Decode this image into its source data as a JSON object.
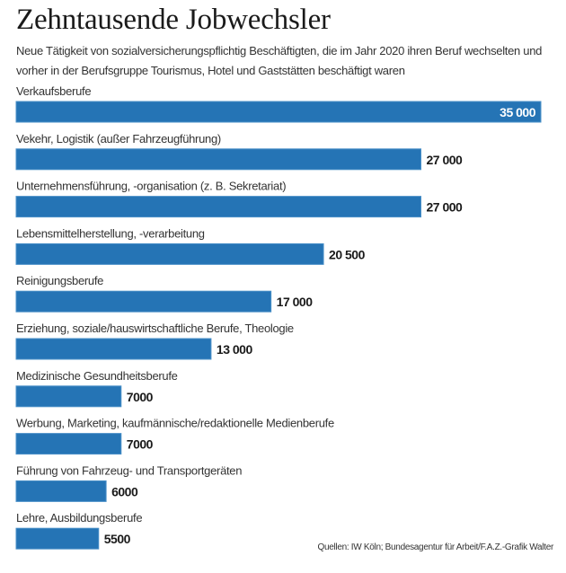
{
  "header": {
    "title": "Zehntausende Jobwechsler",
    "subtitle": "Neue Tätigkeit von sozialversicherungspflichtig Beschäftigten, die im Jahr 2020 ihren Beruf wechselten und vorher in der Berufsgruppe Tourismus, Hotel und Gaststätten beschäftigt waren"
  },
  "footer": {
    "source": "Quellen: IW Köln; Bundesagentur für Arbeit/F.A.Z.-Grafik Walter"
  },
  "colors": {
    "bar": "#2574b5",
    "bar_border": "#4a90c8"
  },
  "chart_data": {
    "type": "bar",
    "orientation": "horizontal",
    "title": "Zehntausende Jobwechsler",
    "xlabel": "",
    "ylabel": "",
    "xlim": [
      0,
      35000
    ],
    "grid": false,
    "categories": [
      "Verkaufsberufe",
      "Vekehr, Logistik (außer Fahrzeugführung)",
      "Unternehmensführung, -organisation (z. B. Sekretariat)",
      "Lebensmittelherstellung, -verarbeitung",
      "Reinigungsberufe",
      "Erziehung, soziale/hauswirtschaftliche Berufe, Theologie",
      "Medizinische Gesundheitsberufe",
      "Werbung, Marketing, kaufmännische/redaktionelle Medienberufe",
      "Führung von Fahrzeug- und Transportgeräten",
      "Lehre, Ausbildungsberufe"
    ],
    "values": [
      35000,
      27000,
      27000,
      20500,
      17000,
      13000,
      7000,
      7000,
      6000,
      5500
    ],
    "value_labels": [
      "35 000",
      "27 000",
      "27 000",
      "20 500",
      "17 000",
      "13 000",
      "7000",
      "7000",
      "6000",
      "5500"
    ]
  }
}
